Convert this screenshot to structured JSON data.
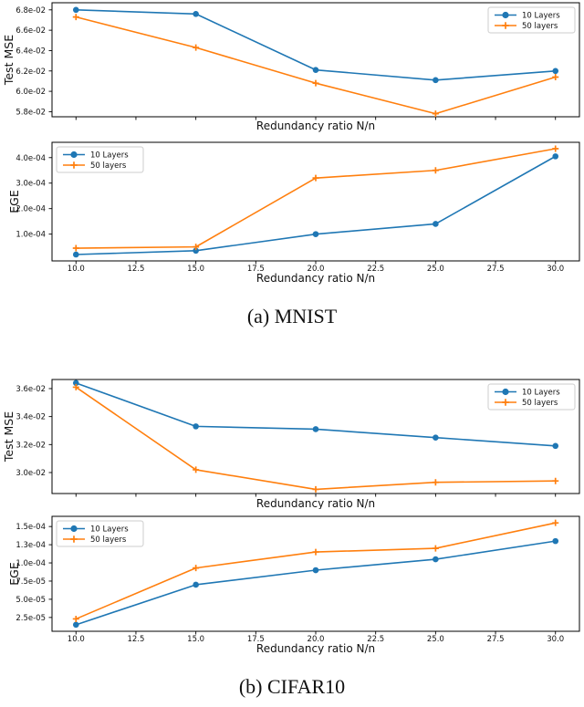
{
  "captions": {
    "a": "(a) MNIST",
    "b": "(b) CIFAR10"
  },
  "shared": {
    "xlabel": "Redundancy ratio N/n",
    "xtick_labels": [
      "10.0",
      "12.5",
      "15.0",
      "17.5",
      "20.0",
      "22.5",
      "25.0",
      "27.5",
      "30.0"
    ],
    "legend_entries": [
      "10 Layers",
      "50 layers"
    ],
    "colors": {
      "blue": "#1f77b4",
      "orange": "#ff7f0e"
    }
  },
  "chart_data": [
    {
      "id": "mnist-test-mse",
      "figure": "MNIST",
      "type": "line",
      "xlabel": "Redundancy ratio N/n",
      "ylabel": "Test MSE",
      "x": [
        10,
        15,
        20,
        25,
        30
      ],
      "series": [
        {
          "name": "10 Layers",
          "color": "#1f77b4",
          "marker": "circle",
          "values": [
            0.068,
            0.0676,
            0.0621,
            0.0611,
            0.062
          ]
        },
        {
          "name": "50 layers",
          "color": "#ff7f0e",
          "marker": "plus",
          "values": [
            0.0673,
            0.0643,
            0.0608,
            0.0578,
            0.0614
          ]
        }
      ],
      "xlim": [
        9,
        31
      ],
      "ylim": [
        0.0575,
        0.0687
      ],
      "xticks": [
        10,
        12.5,
        15,
        17.5,
        20,
        22.5,
        25,
        27.5,
        30
      ],
      "show_xtick_labels": false,
      "yticks": [
        {
          "v": 0.068,
          "label": "6.8e-02"
        },
        {
          "v": 0.066,
          "label": "6.6e-02"
        },
        {
          "v": 0.064,
          "label": "6.4e-02"
        },
        {
          "v": 0.062,
          "label": "6.2e-02"
        },
        {
          "v": 0.06,
          "label": "6.0e-02"
        },
        {
          "v": 0.058,
          "label": "5.8e-02"
        }
      ],
      "legend_pos": "top-right",
      "grid": false
    },
    {
      "id": "mnist-ege",
      "figure": "MNIST",
      "type": "line",
      "xlabel": "Redundancy ratio N/n",
      "ylabel": "EGE",
      "x": [
        10,
        15,
        20,
        25,
        30
      ],
      "series": [
        {
          "name": "10 Layers",
          "color": "#1f77b4",
          "marker": "circle",
          "values": [
            2e-05,
            3.5e-05,
            0.0001,
            0.00014,
            0.000405
          ]
        },
        {
          "name": "50 layers",
          "color": "#ff7f0e",
          "marker": "plus",
          "values": [
            4.5e-05,
            5e-05,
            0.00032,
            0.00035,
            0.000435
          ]
        }
      ],
      "xlim": [
        9,
        31
      ],
      "ylim": [
        -5e-06,
        0.00046
      ],
      "xticks": [
        10,
        12.5,
        15,
        17.5,
        20,
        22.5,
        25,
        27.5,
        30
      ],
      "show_xtick_labels": true,
      "yticks": [
        {
          "v": 0.0004,
          "label": "4.0e-04"
        },
        {
          "v": 0.0003,
          "label": "3.0e-04"
        },
        {
          "v": 0.0002,
          "label": "2.0e-04"
        },
        {
          "v": 0.0001,
          "label": "1.0e-04"
        }
      ],
      "legend_pos": "top-left",
      "grid": false
    },
    {
      "id": "cifar10-test-mse",
      "figure": "CIFAR10",
      "type": "line",
      "xlabel": "Redundancy ratio N/n",
      "ylabel": "Test MSE",
      "x": [
        10,
        15,
        20,
        25,
        30
      ],
      "series": [
        {
          "name": "10 Layers",
          "color": "#1f77b4",
          "marker": "circle",
          "values": [
            0.0364,
            0.0333,
            0.0331,
            0.0325,
            0.0319
          ]
        },
        {
          "name": "50 layers",
          "color": "#ff7f0e",
          "marker": "plus",
          "values": [
            0.0361,
            0.0302,
            0.0288,
            0.0293,
            0.0294
          ]
        }
      ],
      "xlim": [
        9,
        31
      ],
      "ylim": [
        0.0285,
        0.03665
      ],
      "xticks": [
        10,
        12.5,
        15,
        17.5,
        20,
        22.5,
        25,
        27.5,
        30
      ],
      "show_xtick_labels": false,
      "yticks": [
        {
          "v": 0.036,
          "label": "3.6e-02"
        },
        {
          "v": 0.034,
          "label": "3.4e-02"
        },
        {
          "v": 0.032,
          "label": "3.2e-02"
        },
        {
          "v": 0.03,
          "label": "3.0e-02"
        }
      ],
      "legend_pos": "top-right",
      "grid": false
    },
    {
      "id": "cifar10-ege",
      "figure": "CIFAR10",
      "type": "line",
      "xlabel": "Redundancy ratio N/n",
      "ylabel": "EGE",
      "x": [
        10,
        15,
        20,
        25,
        30
      ],
      "series": [
        {
          "name": "10 Layers",
          "color": "#1f77b4",
          "marker": "circle",
          "values": [
            1.5e-05,
            7e-05,
            9e-05,
            0.000105,
            0.00013
          ]
        },
        {
          "name": "50 layers",
          "color": "#ff7f0e",
          "marker": "plus",
          "values": [
            2.3e-05,
            9.3e-05,
            0.000115,
            0.00012,
            0.000155
          ]
        }
      ],
      "xlim": [
        9,
        31
      ],
      "ylim": [
        6e-06,
        0.000164
      ],
      "xticks": [
        10,
        12.5,
        15,
        17.5,
        20,
        22.5,
        25,
        27.5,
        30
      ],
      "show_xtick_labels": true,
      "yticks": [
        {
          "v": 0.00015,
          "label": "1.5e-04"
        },
        {
          "v": 0.000125,
          "label": "1.3e-04"
        },
        {
          "v": 0.0001,
          "label": "1.0e-04"
        },
        {
          "v": 7.5e-05,
          "label": "7.5e-05"
        },
        {
          "v": 5e-05,
          "label": "5.0e-05"
        },
        {
          "v": 2.5e-05,
          "label": "2.5e-05"
        }
      ],
      "legend_pos": "top-left",
      "grid": false
    }
  ]
}
